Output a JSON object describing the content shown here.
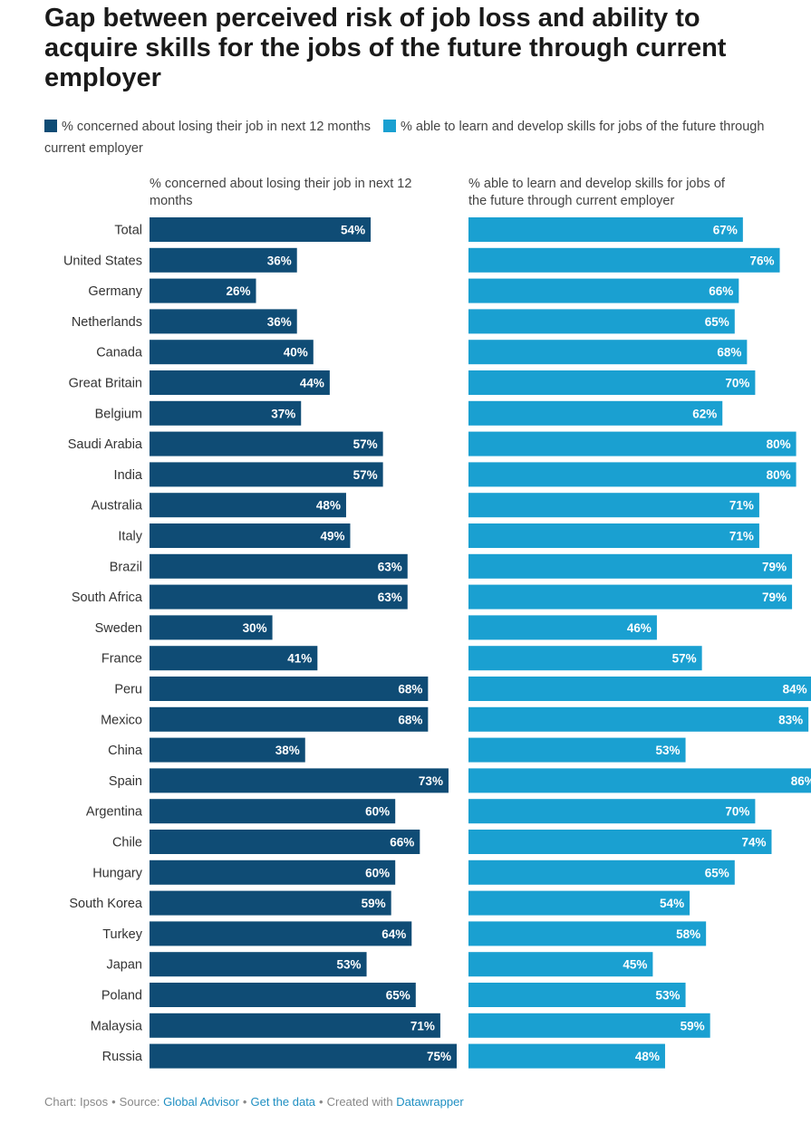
{
  "title": "Gap between perceived risk of job loss and ability to acquire skills for the jobs of the future through current employer",
  "legend": [
    {
      "label": "% concerned about losing their job in next 12 months",
      "color": "#0f4c75"
    },
    {
      "label": "% able to learn and develop skills for jobs of the future through current employer",
      "color": "#1aa0d1"
    }
  ],
  "chart_data": {
    "type": "bar",
    "orientation": "horizontal",
    "layout": "split-bars",
    "categories": [
      "Total",
      "United States",
      "Germany",
      "Netherlands",
      "Canada",
      "Great Britain",
      "Belgium",
      "Saudi Arabia",
      "India",
      "Australia",
      "Italy",
      "Brazil",
      "South Africa",
      "Sweden",
      "France",
      "Peru",
      "Mexico",
      "China",
      "Spain",
      "Argentina",
      "Chile",
      "Hungary",
      "South Korea",
      "Turkey",
      "Japan",
      "Poland",
      "Malaysia",
      "Russia"
    ],
    "series": [
      {
        "name": "% concerned about losing their job in next 12 months",
        "title_lines": [
          "% concerned about losing their job in next 12",
          "months"
        ],
        "color": "#0f4c75",
        "values": [
          54,
          36,
          26,
          36,
          40,
          44,
          37,
          57,
          57,
          48,
          49,
          63,
          63,
          30,
          41,
          68,
          68,
          38,
          73,
          60,
          66,
          60,
          59,
          64,
          53,
          65,
          71,
          75
        ]
      },
      {
        "name": "% able to learn and develop skills for jobs of the future through current employer",
        "title_lines": [
          "% able to learn and develop skills for jobs of",
          "the future through current employer"
        ],
        "color": "#1aa0d1",
        "values": [
          67,
          76,
          66,
          65,
          68,
          70,
          62,
          80,
          80,
          71,
          71,
          79,
          79,
          46,
          57,
          84,
          83,
          53,
          86,
          70,
          74,
          65,
          54,
          58,
          45,
          53,
          59,
          48
        ]
      }
    ],
    "value_suffix": "%",
    "xlim": [
      0,
      100
    ]
  },
  "footer": {
    "prefix": "Chart: Ipsos",
    "source_label": "Source:",
    "source_link": "Global Advisor",
    "data_link": "Get the data",
    "created_label": "Created with",
    "created_link": "Datawrapper",
    "separator": "•"
  }
}
